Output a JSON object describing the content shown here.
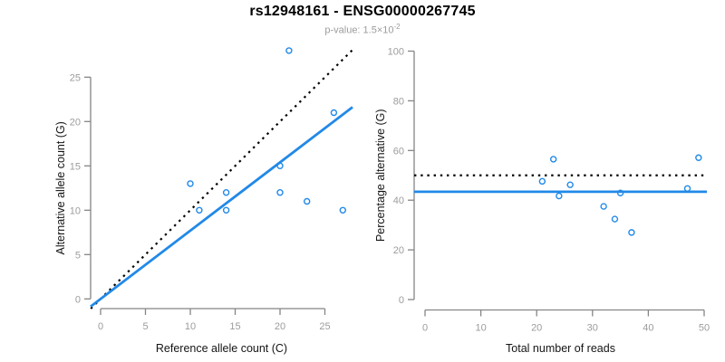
{
  "figure": {
    "title": "rs12948161 - ENSG00000267745",
    "subtitle": "p-value: 1.5×10⁻²",
    "subtitle_prefix": "p-value: 1.5×10",
    "subtitle_exponent": "-2"
  },
  "colors": {
    "accent_blue": "#2189E8",
    "line_black": "#000000",
    "axis_gray": "#858585",
    "tick_text_gray": "#9c9c9c",
    "axis_title_color": "#141414"
  },
  "chart_data": [
    {
      "type": "scatter",
      "title": "rs12948161 - ENSG00000267745",
      "subtitle": "p-value: 1.5×10⁻²",
      "xlabel": "Reference allele count (C)",
      "ylabel": "Alternative allele count (G)",
      "xlim": [
        0,
        27
      ],
      "ylim": [
        0,
        28
      ],
      "xticks": [
        0,
        5,
        10,
        15,
        20,
        25
      ],
      "yticks": [
        0,
        5,
        10,
        15,
        20,
        25
      ],
      "grid": false,
      "legend": "none",
      "points": [
        [
          10,
          13
        ],
        [
          11,
          10
        ],
        [
          14,
          10
        ],
        [
          14,
          12
        ],
        [
          20,
          12
        ],
        [
          20,
          15
        ],
        [
          21,
          28
        ],
        [
          23,
          11
        ],
        [
          26,
          21
        ],
        [
          27,
          10
        ]
      ],
      "lines": [
        {
          "name": "identity",
          "style": "dotted",
          "color": "#000000",
          "slope": 1,
          "intercept": 0
        },
        {
          "name": "fit",
          "style": "solid",
          "color": "#2189E8",
          "slope": 0.77,
          "intercept": 0
        }
      ]
    },
    {
      "type": "scatter",
      "xlabel": "Total number of reads",
      "ylabel": "Percentage alternative (G)",
      "xlim": [
        0,
        50
      ],
      "ylim": [
        0,
        100
      ],
      "xticks": [
        0,
        10,
        20,
        30,
        40,
        50
      ],
      "yticks": [
        0,
        20,
        40,
        60,
        80,
        100
      ],
      "grid": false,
      "legend": "none",
      "points": [
        [
          21,
          47.6
        ],
        [
          23,
          56.5
        ],
        [
          24,
          41.7
        ],
        [
          26,
          46.2
        ],
        [
          32,
          37.5
        ],
        [
          34,
          32.4
        ],
        [
          35,
          42.9
        ],
        [
          37,
          27.0
        ],
        [
          47,
          44.7
        ],
        [
          49,
          57.1
        ]
      ],
      "hlines": [
        {
          "name": "expected-50pct",
          "style": "dotted",
          "color": "#000000",
          "y": 50
        },
        {
          "name": "mean-percentage",
          "style": "solid",
          "color": "#2189E8",
          "y": 43.4
        }
      ]
    }
  ]
}
